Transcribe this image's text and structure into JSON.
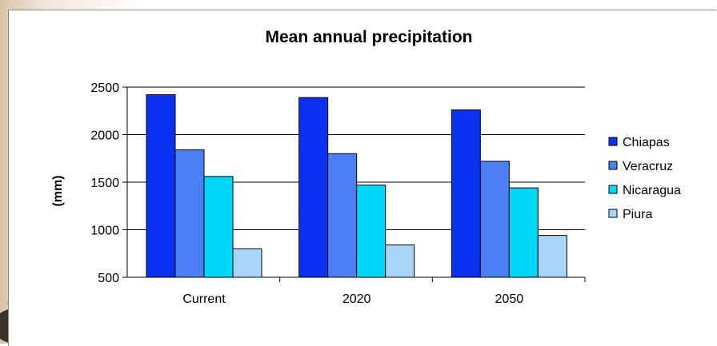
{
  "chart_data": {
    "type": "bar",
    "title": "Mean annual precipitation",
    "xlabel": "",
    "ylabel": "(mm)",
    "ylim": [
      500,
      2500
    ],
    "yticks": [
      500,
      1000,
      1500,
      2000,
      2500
    ],
    "grid": true,
    "legend_position": "right",
    "categories": [
      "Current",
      "2020",
      "2050"
    ],
    "series": [
      {
        "name": "Chiapas",
        "color": "#0a32f0",
        "values": [
          2420,
          2390,
          2260
        ]
      },
      {
        "name": "Veracruz",
        "color": "#4a7ff5",
        "values": [
          1840,
          1800,
          1720
        ]
      },
      {
        "name": "Nicaragua",
        "color": "#00d8f8",
        "values": [
          1560,
          1470,
          1440
        ]
      },
      {
        "name": "Piura",
        "color": "#a9d5fb",
        "values": [
          800,
          840,
          940
        ]
      }
    ]
  }
}
